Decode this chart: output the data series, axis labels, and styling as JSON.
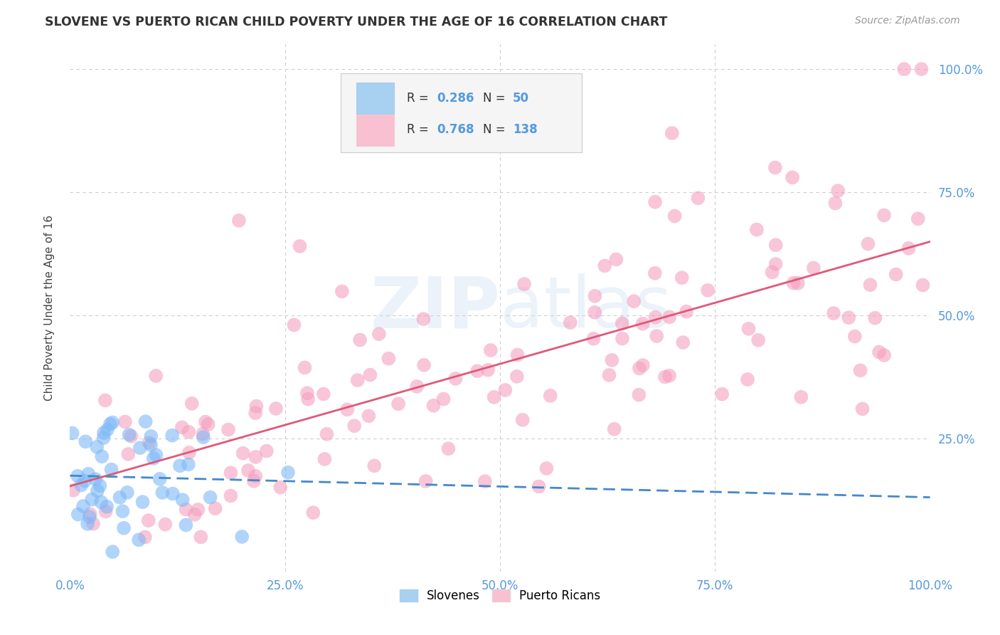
{
  "title": "SLOVENE VS PUERTO RICAN CHILD POVERTY UNDER THE AGE OF 16 CORRELATION CHART",
  "source": "Source: ZipAtlas.com",
  "ylabel": "Child Poverty Under the Age of 16",
  "xlim": [
    0,
    1
  ],
  "ylim": [
    0,
    1
  ],
  "xticks": [
    0.0,
    0.25,
    0.5,
    0.75,
    1.0
  ],
  "yticks": [
    0.25,
    0.5,
    0.75,
    1.0
  ],
  "xticklabels": [
    "0.0%",
    "25.0%",
    "50.0%",
    "75.0%",
    "100.0%"
  ],
  "yticklabels_right": [
    "25.0%",
    "50.0%",
    "75.0%",
    "100.0%"
  ],
  "slovene_R": 0.286,
  "slovene_N": 50,
  "puerto_rican_R": 0.768,
  "puerto_rican_N": 138,
  "slovene_scatter_color": "#7EB8F7",
  "puerto_rican_scatter_color": "#F4A0BE",
  "trendline_slovene_color": "#4488CC",
  "trendline_puerto_rican_color": "#E05878",
  "legend_slovene_color": "#A8D0F0",
  "legend_puerto_rican_color": "#F8C0D0",
  "watermark": "ZIPatlas",
  "tick_color": "#5599DD",
  "background_color": "#FFFFFF",
  "grid_color": "#CCCCCC",
  "title_color": "#333333",
  "source_color": "#999999",
  "ylabel_color": "#444444"
}
